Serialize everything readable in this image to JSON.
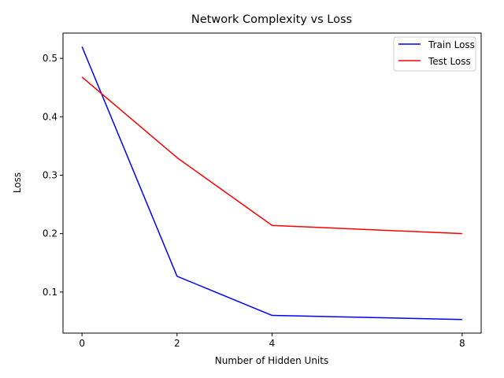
{
  "chart_data": {
    "type": "line",
    "title": "Network Complexity vs Loss",
    "xlabel": "Number of Hidden Units",
    "ylabel": "Loss",
    "x": [
      0,
      2,
      4,
      8
    ],
    "xticks": [
      0,
      2,
      4,
      8
    ],
    "yticks": [
      0.1,
      0.2,
      0.3,
      0.4,
      0.5
    ],
    "xlim": [
      -0.4,
      8.4
    ],
    "ylim": [
      0.0297,
      0.5433
    ],
    "grid": false,
    "legend_position": "top-right",
    "series": [
      {
        "name": "Train Loss",
        "color": "#0000ff",
        "values": [
          0.52,
          0.127,
          0.06,
          0.053
        ]
      },
      {
        "name": "Test Loss",
        "color": "#ff0000",
        "values": [
          0.468,
          0.33,
          0.214,
          0.2
        ]
      }
    ]
  }
}
